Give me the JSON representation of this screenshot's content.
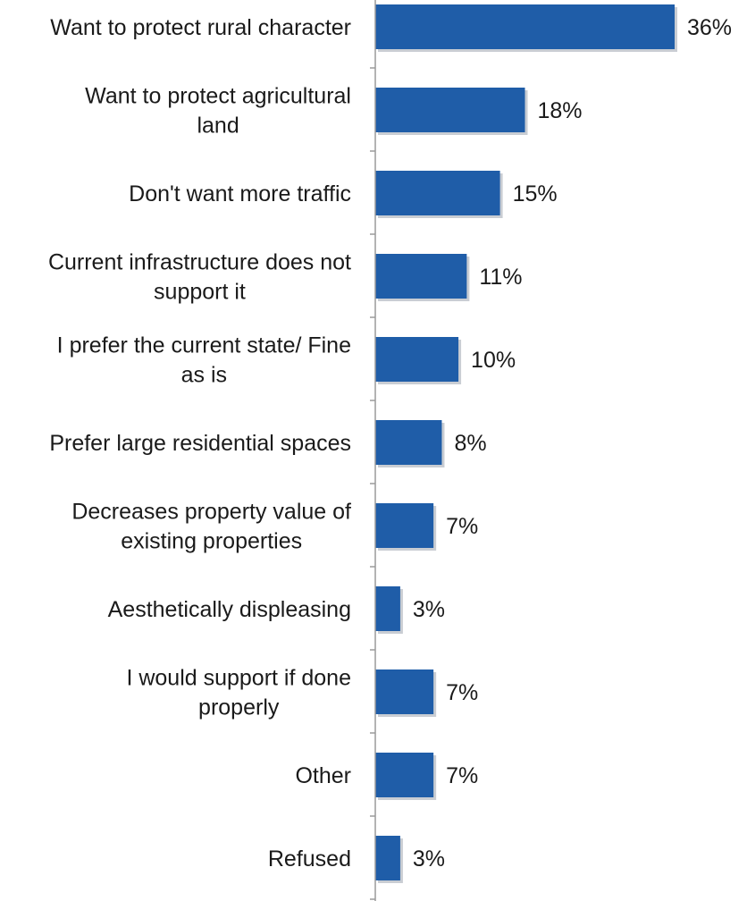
{
  "chart_data": {
    "type": "bar",
    "orientation": "horizontal",
    "title": "",
    "xlabel": "",
    "ylabel": "",
    "categories": [
      "Want to protect rural character",
      "Want to protect agricultural land",
      "Don't want more traffic",
      "Current infrastructure does not support it",
      "I prefer the current state/ Fine as is",
      "Prefer large residential spaces",
      "Decreases property value of existing properties",
      "Aesthetically displeasing",
      "I would support if done properly",
      "Other",
      "Refused"
    ],
    "category_lines": [
      [
        "Want to protect rural character"
      ],
      [
        "Want to protect agricultural",
        "land"
      ],
      [
        "Don't want more traffic"
      ],
      [
        "Current infrastructure does not",
        "support it"
      ],
      [
        "I prefer the current state/ Fine",
        "as is"
      ],
      [
        "Prefer large residential spaces"
      ],
      [
        "Decreases property value of",
        "existing properties"
      ],
      [
        "Aesthetically displeasing"
      ],
      [
        "I would support if done",
        "properly"
      ],
      [
        "Other"
      ],
      [
        "Refused"
      ]
    ],
    "values": [
      36,
      18,
      15,
      11,
      10,
      8,
      7,
      3,
      7,
      7,
      3
    ],
    "value_labels": [
      "36%",
      "18%",
      "15%",
      "11%",
      "10%",
      "8%",
      "7%",
      "3%",
      "7%",
      "7%",
      "3%"
    ],
    "unit": "%",
    "xlim": [
      0,
      36
    ],
    "grid": false,
    "legend": "none",
    "colors": {
      "bar": "#1f5da8",
      "bar_shadow": "#c9cdd3",
      "axis": "#9a9a9a",
      "text": "#1a1a1a"
    }
  }
}
